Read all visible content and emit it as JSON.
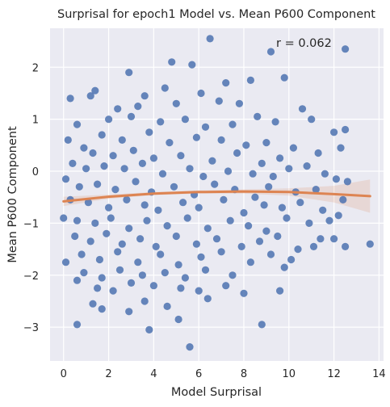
{
  "chart_data": {
    "type": "scatter",
    "title": "Surprisal for epoch1 Model vs. Mean P600 Component",
    "xlabel": "Model Surprisal",
    "ylabel": "Mean P600 Component",
    "annotation": "r = 0.062",
    "xlim": [
      -0.6,
      14.2
    ],
    "ylim": [
      -3.65,
      2.75
    ],
    "xticks": [
      0,
      2,
      4,
      6,
      8,
      10,
      12,
      14
    ],
    "yticks": [
      -3,
      -2,
      -1,
      0,
      1,
      2
    ],
    "grid": true,
    "background": "#eaeaf2",
    "point_color": "#4c72b0",
    "fit_color": "#dd8452",
    "series": [
      {
        "type": "scatter",
        "points": [
          [
            6.5,
            2.55
          ],
          [
            12.5,
            2.35
          ],
          [
            9.2,
            2.3
          ],
          [
            5.7,
            2.05
          ],
          [
            4.8,
            2.1
          ],
          [
            2.9,
            1.9
          ],
          [
            7.2,
            1.7
          ],
          [
            8.3,
            1.75
          ],
          [
            9.8,
            1.8
          ],
          [
            4.5,
            1.6
          ],
          [
            6.1,
            1.5
          ],
          [
            3.6,
            1.45
          ],
          [
            1.4,
            1.55
          ],
          [
            0.3,
            1.4
          ],
          [
            1.2,
            1.45
          ],
          [
            5.0,
            1.3
          ],
          [
            6.9,
            1.35
          ],
          [
            3.3,
            1.25
          ],
          [
            7.8,
            1.3
          ],
          [
            2.4,
            1.2
          ],
          [
            10.6,
            1.2
          ],
          [
            0.6,
            0.9
          ],
          [
            2.0,
            1.0
          ],
          [
            3.0,
            1.05
          ],
          [
            4.3,
            0.95
          ],
          [
            5.4,
            1.0
          ],
          [
            6.3,
            0.85
          ],
          [
            7.5,
            0.9
          ],
          [
            8.6,
            1.05
          ],
          [
            9.4,
            0.95
          ],
          [
            11.0,
            1.0
          ],
          [
            12.0,
            0.75
          ],
          [
            12.5,
            0.8
          ],
          [
            1.7,
            0.7
          ],
          [
            2.6,
            0.6
          ],
          [
            3.8,
            0.75
          ],
          [
            4.7,
            0.55
          ],
          [
            5.9,
            0.65
          ],
          [
            7.0,
            0.6
          ],
          [
            8.1,
            0.5
          ],
          [
            9.0,
            0.55
          ],
          [
            10.2,
            0.45
          ],
          [
            11.3,
            0.35
          ],
          [
            0.2,
            0.6
          ],
          [
            0.9,
            0.45
          ],
          [
            1.3,
            0.35
          ],
          [
            2.2,
            0.3
          ],
          [
            3.1,
            0.4
          ],
          [
            4.0,
            0.25
          ],
          [
            5.2,
            0.3
          ],
          [
            6.6,
            0.2
          ],
          [
            7.7,
            0.35
          ],
          [
            8.8,
            0.15
          ],
          [
            9.6,
            0.25
          ],
          [
            10.8,
            0.1
          ],
          [
            12.3,
            0.45
          ],
          [
            0.4,
            0.15
          ],
          [
            1.0,
            0.05
          ],
          [
            1.8,
            0.1
          ],
          [
            2.7,
            0.05
          ],
          [
            3.5,
            0.15
          ],
          [
            4.4,
            -0.05
          ],
          [
            5.6,
            0.05
          ],
          [
            6.2,
            -0.1
          ],
          [
            7.3,
            0.0
          ],
          [
            8.4,
            -0.05
          ],
          [
            9.3,
            -0.1
          ],
          [
            10.0,
            0.05
          ],
          [
            11.6,
            -0.05
          ],
          [
            12.1,
            -0.15
          ],
          [
            0.1,
            -0.15
          ],
          [
            0.7,
            -0.3
          ],
          [
            1.5,
            -0.25
          ],
          [
            2.3,
            -0.35
          ],
          [
            3.2,
            -0.2
          ],
          [
            3.9,
            -0.4
          ],
          [
            4.9,
            -0.3
          ],
          [
            5.8,
            -0.45
          ],
          [
            6.7,
            -0.25
          ],
          [
            7.6,
            -0.35
          ],
          [
            8.5,
            -0.5
          ],
          [
            9.1,
            -0.3
          ],
          [
            10.3,
            -0.4
          ],
          [
            11.2,
            -0.35
          ],
          [
            12.6,
            -0.2
          ],
          [
            0.3,
            -0.55
          ],
          [
            1.1,
            -0.6
          ],
          [
            2.0,
            -0.7
          ],
          [
            2.8,
            -0.55
          ],
          [
            3.6,
            -0.65
          ],
          [
            4.2,
            -0.75
          ],
          [
            5.3,
            -0.6
          ],
          [
            6.0,
            -0.7
          ],
          [
            7.1,
            -0.55
          ],
          [
            8.0,
            -0.8
          ],
          [
            8.9,
            -0.65
          ],
          [
            9.7,
            -0.7
          ],
          [
            10.5,
            -0.6
          ],
          [
            11.5,
            -0.75
          ],
          [
            12.4,
            -0.55
          ],
          [
            0.0,
            -0.9
          ],
          [
            0.6,
            -0.95
          ],
          [
            1.4,
            -1.0
          ],
          [
            2.1,
            -0.9
          ],
          [
            2.9,
            -1.1
          ],
          [
            3.7,
            -0.95
          ],
          [
            4.6,
            -1.05
          ],
          [
            5.5,
            -0.9
          ],
          [
            6.4,
            -1.1
          ],
          [
            7.4,
            -0.95
          ],
          [
            8.2,
            -1.05
          ],
          [
            9.0,
            -1.15
          ],
          [
            9.9,
            -0.9
          ],
          [
            10.9,
            -1.0
          ],
          [
            11.8,
            -0.95
          ],
          [
            12.2,
            -0.85
          ],
          [
            0.5,
            -1.25
          ],
          [
            1.2,
            -1.35
          ],
          [
            1.9,
            -1.2
          ],
          [
            2.6,
            -1.4
          ],
          [
            3.4,
            -1.3
          ],
          [
            4.1,
            -1.45
          ],
          [
            5.0,
            -1.25
          ],
          [
            5.9,
            -1.4
          ],
          [
            6.8,
            -1.3
          ],
          [
            7.9,
            -1.45
          ],
          [
            8.7,
            -1.35
          ],
          [
            9.5,
            -1.25
          ],
          [
            10.4,
            -1.5
          ],
          [
            11.4,
            -1.3
          ],
          [
            12.0,
            -1.3
          ],
          [
            0.8,
            -1.6
          ],
          [
            1.6,
            -1.7
          ],
          [
            2.4,
            -1.55
          ],
          [
            3.3,
            -1.75
          ],
          [
            4.3,
            -1.6
          ],
          [
            5.1,
            -1.8
          ],
          [
            6.1,
            -1.65
          ],
          [
            7.0,
            -1.55
          ],
          [
            8.3,
            -1.75
          ],
          [
            9.2,
            -1.6
          ],
          [
            10.1,
            -1.7
          ],
          [
            11.1,
            -1.45
          ],
          [
            12.5,
            -1.45
          ],
          [
            13.6,
            -1.4
          ],
          [
            0.1,
            -1.75
          ],
          [
            0.9,
            -1.95
          ],
          [
            1.7,
            -2.05
          ],
          [
            2.5,
            -1.9
          ],
          [
            3.5,
            -2.0
          ],
          [
            4.5,
            -1.95
          ],
          [
            5.4,
            -2.05
          ],
          [
            6.3,
            -1.9
          ],
          [
            7.5,
            -2.0
          ],
          [
            9.8,
            -1.85
          ],
          [
            0.6,
            -2.1
          ],
          [
            1.5,
            -2.25
          ],
          [
            2.2,
            -2.3
          ],
          [
            3.0,
            -2.15
          ],
          [
            4.0,
            -2.2
          ],
          [
            5.2,
            -2.25
          ],
          [
            6.0,
            -2.3
          ],
          [
            7.2,
            -2.2
          ],
          [
            8.0,
            -2.35
          ],
          [
            9.6,
            -2.3
          ],
          [
            1.3,
            -2.55
          ],
          [
            1.7,
            -2.65
          ],
          [
            2.9,
            -2.7
          ],
          [
            3.6,
            -2.5
          ],
          [
            4.6,
            -2.6
          ],
          [
            5.1,
            -2.85
          ],
          [
            6.4,
            -2.45
          ],
          [
            8.8,
            -2.95
          ],
          [
            0.6,
            -2.95
          ],
          [
            3.8,
            -3.05
          ],
          [
            5.6,
            -3.38
          ]
        ]
      },
      {
        "type": "line",
        "name": "",
        "x": [
          0.0,
          2.0,
          4.0,
          6.0,
          8.0,
          10.0,
          12.0,
          13.6
        ],
        "y": [
          -0.58,
          -0.49,
          -0.43,
          -0.4,
          -0.39,
          -0.4,
          -0.44,
          -0.48
        ],
        "ci_lower": [
          -0.67,
          -0.53,
          -0.46,
          -0.43,
          -0.43,
          -0.47,
          -0.6,
          -0.8
        ],
        "ci_upper": [
          -0.49,
          -0.45,
          -0.4,
          -0.37,
          -0.35,
          -0.33,
          -0.28,
          -0.16
        ]
      }
    ]
  }
}
